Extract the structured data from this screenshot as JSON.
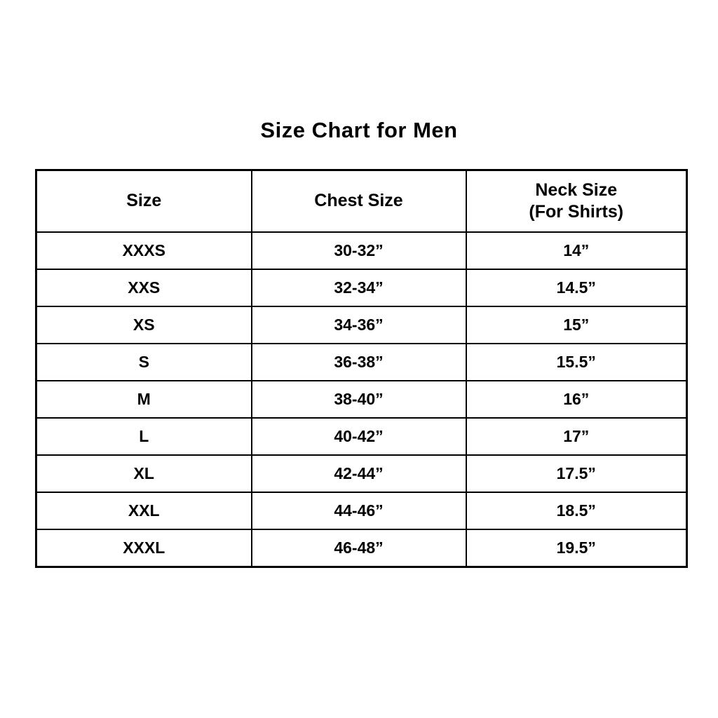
{
  "title": "Size Chart for Men",
  "table": {
    "headers": {
      "size": "Size",
      "chest": "Chest Size",
      "neck_line1": "Neck Size",
      "neck_line2": "(For Shirts)"
    },
    "rows": [
      {
        "size": "XXXS",
        "chest": "30-32”",
        "neck": "14”"
      },
      {
        "size": "XXS",
        "chest": "32-34”",
        "neck": "14.5”"
      },
      {
        "size": "XS",
        "chest": "34-36”",
        "neck": "15”"
      },
      {
        "size": "S",
        "chest": "36-38”",
        "neck": "15.5”"
      },
      {
        "size": "M",
        "chest": "38-40”",
        "neck": "16”"
      },
      {
        "size": "L",
        "chest": "40-42”",
        "neck": "17”"
      },
      {
        "size": "XL",
        "chest": "42-44”",
        "neck": "17.5”"
      },
      {
        "size": "XXL",
        "chest": "44-46”",
        "neck": "18.5”"
      },
      {
        "size": "XXXL",
        "chest": "46-48”",
        "neck": "19.5”"
      }
    ]
  },
  "chart_data": {
    "type": "table",
    "title": "Size Chart for Men",
    "columns": [
      "Size",
      "Chest Size",
      "Neck Size (For Shirts)"
    ],
    "rows": [
      [
        "XXXS",
        "30-32”",
        "14”"
      ],
      [
        "XXS",
        "32-34”",
        "14.5”"
      ],
      [
        "XS",
        "34-36”",
        "15”"
      ],
      [
        "S",
        "36-38”",
        "15.5”"
      ],
      [
        "M",
        "38-40”",
        "16”"
      ],
      [
        "L",
        "40-42”",
        "17”"
      ],
      [
        "XL",
        "42-44”",
        "17.5”"
      ],
      [
        "XXL",
        "44-46”",
        "18.5”"
      ],
      [
        "XXXL",
        "46-48”",
        "19.5”"
      ]
    ],
    "layout": {
      "grid": true,
      "text_color": "#000000",
      "background_color": "#ffffff",
      "border_color": "#000000"
    }
  }
}
